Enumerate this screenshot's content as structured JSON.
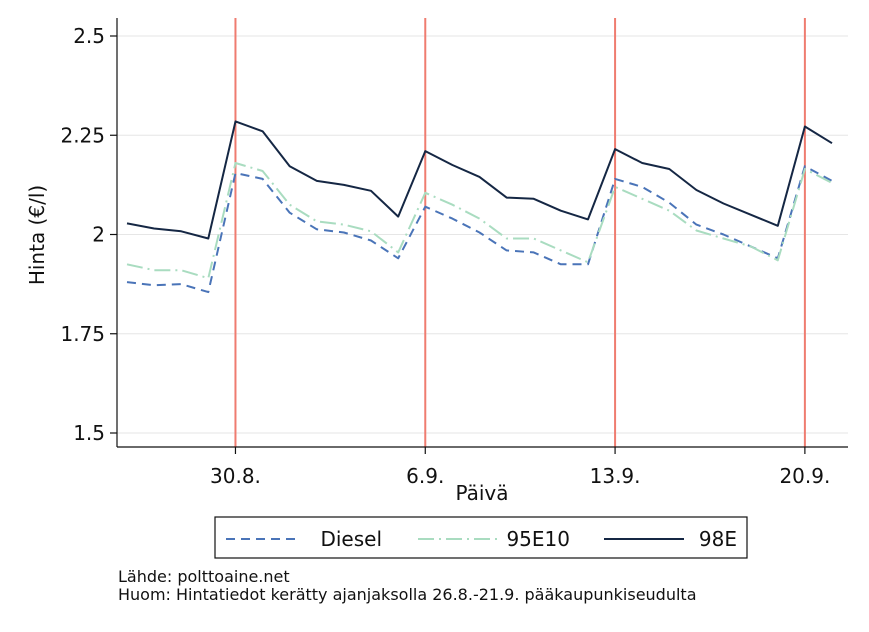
{
  "chart_data": {
    "type": "line",
    "xlabel": "Päivä",
    "ylabel": "Hinta (€/l)",
    "ylim": [
      1.5,
      2.5
    ],
    "yticks": [
      1.5,
      1.75,
      2,
      2.25,
      2.5
    ],
    "ytick_labels": [
      "1.5",
      "1.75",
      "2",
      "2.25",
      "2.5"
    ],
    "x": [
      "26.8.",
      "27.8.",
      "28.8.",
      "29.8.",
      "30.8.",
      "31.8.",
      "1.9.",
      "2.9.",
      "3.9.",
      "4.9.",
      "5.9.",
      "6.9.",
      "7.9.",
      "8.9.",
      "9.9.",
      "10.9.",
      "11.9.",
      "12.9.",
      "13.9.",
      "14.9.",
      "15.9.",
      "16.9.",
      "17.9.",
      "18.9.",
      "19.9.",
      "20.9.",
      "21.9."
    ],
    "xtick_labels": [
      "30.8.",
      "6.9.",
      "13.9.",
      "20.9."
    ],
    "vlines": [
      "30.8.",
      "6.9.",
      "13.9.",
      "20.9."
    ],
    "grid": true,
    "legend_position": "bottom",
    "series": [
      {
        "name": "Diesel",
        "style": "dashed",
        "color": "#4a74b8",
        "values": [
          1.88,
          1.872,
          1.875,
          1.855,
          2.155,
          2.14,
          2.055,
          2.013,
          2.005,
          1.985,
          1.94,
          2.07,
          2.04,
          2.005,
          1.96,
          1.955,
          1.925,
          1.925,
          2.14,
          2.12,
          2.08,
          2.025,
          2.0,
          1.97,
          1.94,
          2.172,
          2.135
        ]
      },
      {
        "name": "95E10",
        "style": "dashdot",
        "color": "#a9dcc0",
        "values": [
          1.925,
          1.91,
          1.91,
          1.89,
          2.18,
          2.16,
          2.075,
          2.033,
          2.025,
          2.008,
          1.955,
          2.105,
          2.075,
          2.04,
          1.99,
          1.99,
          1.96,
          1.93,
          2.12,
          2.09,
          2.06,
          2.01,
          1.99,
          1.97,
          1.935,
          2.165,
          2.13
        ]
      },
      {
        "name": "98E",
        "style": "solid",
        "color": "#152744",
        "values": [
          2.028,
          2.015,
          2.008,
          1.99,
          2.285,
          2.26,
          2.172,
          2.135,
          2.125,
          2.11,
          2.045,
          2.21,
          2.175,
          2.145,
          2.093,
          2.09,
          2.06,
          2.038,
          2.215,
          2.18,
          2.165,
          2.112,
          2.078,
          2.05,
          2.022,
          2.272,
          2.23
        ]
      }
    ]
  },
  "notes": {
    "source": "Lähde: polttoaine.net",
    "remark": "Huom: Hintatiedot kerätty ajanjaksolla 26.8.-21.9. pääkaupunkiseudulta"
  }
}
